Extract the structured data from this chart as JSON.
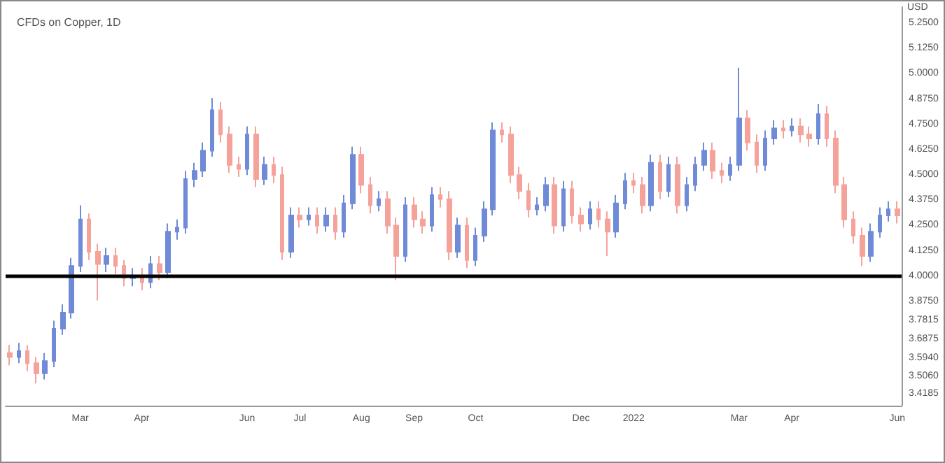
{
  "chart_data": {
    "type": "candlestick",
    "title": "CFDs on Copper, 1D",
    "ylabel": "USD",
    "categories": [
      null,
      null,
      null,
      null,
      null,
      null,
      null,
      null,
      "Mar",
      null,
      null,
      null,
      null,
      null,
      null,
      "Apr",
      null,
      null,
      null,
      null,
      null,
      null,
      null,
      null,
      null,
      null,
      null,
      "Jun",
      null,
      null,
      null,
      null,
      null,
      "Jul",
      null,
      null,
      null,
      null,
      null,
      null,
      "Aug",
      null,
      null,
      null,
      null,
      null,
      "Sep",
      null,
      null,
      null,
      null,
      null,
      null,
      "Oct",
      null,
      null,
      null,
      null,
      null,
      null,
      null,
      null,
      null,
      null,
      null,
      "Dec",
      null,
      null,
      null,
      null,
      null,
      "2022",
      null,
      null,
      null,
      null,
      null,
      null,
      null,
      null,
      null,
      null,
      null,
      "Mar",
      null,
      null,
      null,
      null,
      null,
      "Apr",
      null,
      null,
      null,
      null,
      null,
      null,
      null,
      null,
      null,
      null,
      null,
      "Jun"
    ],
    "ohlc": [
      [
        3.62,
        3.66,
        3.56,
        3.6
      ],
      [
        3.6,
        3.67,
        3.57,
        3.63
      ],
      [
        3.63,
        3.66,
        3.53,
        3.57
      ],
      [
        3.57,
        3.6,
        3.47,
        3.52
      ],
      [
        3.52,
        3.62,
        3.49,
        3.58
      ],
      [
        3.58,
        3.78,
        3.55,
        3.74
      ],
      [
        3.74,
        3.86,
        3.71,
        3.82
      ],
      [
        3.82,
        4.09,
        3.79,
        4.05
      ],
      [
        4.05,
        4.35,
        4.02,
        4.28
      ],
      [
        4.28,
        4.31,
        4.08,
        4.12
      ],
      [
        4.12,
        4.16,
        3.88,
        4.06
      ],
      [
        4.06,
        4.14,
        4.02,
        4.1
      ],
      [
        4.1,
        4.14,
        4.01,
        4.05
      ],
      [
        4.05,
        4.08,
        3.95,
        3.99
      ],
      [
        3.99,
        4.04,
        3.95,
        4.0
      ],
      [
        4.0,
        4.04,
        3.93,
        3.97
      ],
      [
        3.97,
        4.1,
        3.94,
        4.06
      ],
      [
        4.06,
        4.1,
        3.98,
        4.02
      ],
      [
        4.02,
        4.26,
        3.99,
        4.22
      ],
      [
        4.22,
        4.28,
        4.18,
        4.24
      ],
      [
        4.24,
        4.52,
        4.21,
        4.48
      ],
      [
        4.48,
        4.56,
        4.44,
        4.52
      ],
      [
        4.52,
        4.66,
        4.49,
        4.62
      ],
      [
        4.62,
        4.88,
        4.59,
        4.82
      ],
      [
        4.82,
        4.86,
        4.66,
        4.7
      ],
      [
        4.7,
        4.74,
        4.51,
        4.55
      ],
      [
        4.55,
        4.59,
        4.49,
        4.53
      ],
      [
        4.53,
        4.74,
        4.5,
        4.7
      ],
      [
        4.7,
        4.74,
        4.44,
        4.48
      ],
      [
        4.48,
        4.59,
        4.45,
        4.55
      ],
      [
        4.55,
        4.59,
        4.46,
        4.5
      ],
      [
        4.5,
        4.54,
        4.08,
        4.12
      ],
      [
        4.12,
        4.34,
        4.09,
        4.3
      ],
      [
        4.3,
        4.34,
        4.24,
        4.28
      ],
      [
        4.28,
        4.34,
        4.25,
        4.3
      ],
      [
        4.3,
        4.34,
        4.21,
        4.25
      ],
      [
        4.25,
        4.34,
        4.22,
        4.3
      ],
      [
        4.3,
        4.34,
        4.18,
        4.22
      ],
      [
        4.22,
        4.4,
        4.19,
        4.36
      ],
      [
        4.36,
        4.64,
        4.33,
        4.6
      ],
      [
        4.6,
        4.64,
        4.41,
        4.45
      ],
      [
        4.45,
        4.49,
        4.31,
        4.35
      ],
      [
        4.35,
        4.42,
        4.32,
        4.38
      ],
      [
        4.38,
        4.42,
        4.21,
        4.25
      ],
      [
        4.25,
        4.29,
        3.98,
        4.1
      ],
      [
        4.1,
        4.39,
        4.07,
        4.35
      ],
      [
        4.35,
        4.39,
        4.24,
        4.28
      ],
      [
        4.28,
        4.32,
        4.21,
        4.25
      ],
      [
        4.25,
        4.44,
        4.22,
        4.4
      ],
      [
        4.4,
        4.44,
        4.34,
        4.38
      ],
      [
        4.38,
        4.42,
        4.08,
        4.12
      ],
      [
        4.12,
        4.29,
        4.09,
        4.25
      ],
      [
        4.25,
        4.29,
        4.04,
        4.08
      ],
      [
        4.08,
        4.24,
        4.05,
        4.2
      ],
      [
        4.2,
        4.37,
        4.17,
        4.33
      ],
      [
        4.33,
        4.76,
        4.3,
        4.72
      ],
      [
        4.72,
        4.76,
        4.66,
        4.7
      ],
      [
        4.7,
        4.74,
        4.46,
        4.5
      ],
      [
        4.5,
        4.54,
        4.38,
        4.42
      ],
      [
        4.42,
        4.46,
        4.29,
        4.33
      ],
      [
        4.33,
        4.39,
        4.3,
        4.35
      ],
      [
        4.35,
        4.49,
        4.32,
        4.45
      ],
      [
        4.45,
        4.49,
        4.21,
        4.25
      ],
      [
        4.25,
        4.47,
        4.22,
        4.43
      ],
      [
        4.43,
        4.47,
        4.26,
        4.3
      ],
      [
        4.3,
        4.34,
        4.22,
        4.26
      ],
      [
        4.26,
        4.37,
        4.23,
        4.33
      ],
      [
        4.33,
        4.37,
        4.24,
        4.28
      ],
      [
        4.28,
        4.32,
        4.1,
        4.22
      ],
      [
        4.22,
        4.4,
        4.19,
        4.36
      ],
      [
        4.36,
        4.51,
        4.33,
        4.47
      ],
      [
        4.47,
        4.51,
        4.41,
        4.45
      ],
      [
        4.45,
        4.49,
        4.31,
        4.35
      ],
      [
        4.35,
        4.6,
        4.32,
        4.56
      ],
      [
        4.56,
        4.6,
        4.38,
        4.42
      ],
      [
        4.42,
        4.59,
        4.39,
        4.55
      ],
      [
        4.55,
        4.59,
        4.31,
        4.35
      ],
      [
        4.35,
        4.49,
        4.32,
        4.45
      ],
      [
        4.45,
        4.59,
        4.42,
        4.55
      ],
      [
        4.55,
        4.66,
        4.52,
        4.62
      ],
      [
        4.62,
        4.66,
        4.48,
        4.52
      ],
      [
        4.52,
        4.56,
        4.46,
        4.5
      ],
      [
        4.5,
        4.59,
        4.47,
        4.55
      ],
      [
        4.55,
        5.03,
        4.52,
        4.78
      ],
      [
        4.78,
        4.82,
        4.62,
        4.66
      ],
      [
        4.66,
        4.7,
        4.51,
        4.55
      ],
      [
        4.55,
        4.72,
        4.52,
        4.68
      ],
      [
        4.68,
        4.77,
        4.65,
        4.73
      ],
      [
        4.73,
        4.77,
        4.68,
        4.72
      ],
      [
        4.72,
        4.78,
        4.69,
        4.74
      ],
      [
        4.74,
        4.78,
        4.66,
        4.7
      ],
      [
        4.7,
        4.74,
        4.64,
        4.68
      ],
      [
        4.68,
        4.85,
        4.65,
        4.8
      ],
      [
        4.8,
        4.84,
        4.64,
        4.68
      ],
      [
        4.68,
        4.72,
        4.41,
        4.45
      ],
      [
        4.45,
        4.49,
        4.24,
        4.28
      ],
      [
        4.28,
        4.32,
        4.16,
        4.2
      ],
      [
        4.2,
        4.24,
        4.05,
        4.1
      ],
      [
        4.1,
        4.26,
        4.07,
        4.22
      ],
      [
        4.22,
        4.34,
        4.19,
        4.3
      ],
      [
        4.3,
        4.37,
        4.27,
        4.33
      ],
      [
        4.33,
        4.37,
        4.26,
        4.3
      ]
    ],
    "colors": [
      "#f5a29b",
      "#6f8bd8",
      "#f5a29b",
      "#f5a29b",
      "#6f8bd8",
      "#6f8bd8",
      "#6f8bd8",
      "#6f8bd8",
      "#6f8bd8",
      "#f5a29b",
      "#f5a29b",
      "#6f8bd8",
      "#f5a29b",
      "#f5a29b",
      "#6f8bd8",
      "#f5a29b",
      "#6f8bd8",
      "#f5a29b",
      "#6f8bd8",
      "#6f8bd8",
      "#6f8bd8",
      "#6f8bd8",
      "#6f8bd8",
      "#6f8bd8",
      "#f5a29b",
      "#f5a29b",
      "#f5a29b",
      "#6f8bd8",
      "#f5a29b",
      "#6f8bd8",
      "#f5a29b",
      "#f5a29b",
      "#6f8bd8",
      "#f5a29b",
      "#6f8bd8",
      "#f5a29b",
      "#6f8bd8",
      "#f5a29b",
      "#6f8bd8",
      "#6f8bd8",
      "#f5a29b",
      "#f5a29b",
      "#6f8bd8",
      "#f5a29b",
      "#f5a29b",
      "#6f8bd8",
      "#f5a29b",
      "#f5a29b",
      "#6f8bd8",
      "#f5a29b",
      "#f5a29b",
      "#6f8bd8",
      "#f5a29b",
      "#6f8bd8",
      "#6f8bd8",
      "#6f8bd8",
      "#f5a29b",
      "#f5a29b",
      "#f5a29b",
      "#f5a29b",
      "#6f8bd8",
      "#6f8bd8",
      "#f5a29b",
      "#6f8bd8",
      "#f5a29b",
      "#f5a29b",
      "#6f8bd8",
      "#f5a29b",
      "#f5a29b",
      "#6f8bd8",
      "#6f8bd8",
      "#f5a29b",
      "#f5a29b",
      "#6f8bd8",
      "#f5a29b",
      "#6f8bd8",
      "#f5a29b",
      "#6f8bd8",
      "#6f8bd8",
      "#6f8bd8",
      "#f5a29b",
      "#f5a29b",
      "#6f8bd8",
      "#6f8bd8",
      "#f5a29b",
      "#f5a29b",
      "#6f8bd8",
      "#6f8bd8",
      "#f5a29b",
      "#6f8bd8",
      "#f5a29b",
      "#f5a29b",
      "#6f8bd8",
      "#f5a29b",
      "#f5a29b",
      "#f5a29b",
      "#f5a29b",
      "#f5a29b",
      "#6f8bd8",
      "#6f8bd8",
      "#6f8bd8",
      "#f5a29b"
    ],
    "ylim": [
      3.36,
      5.33
    ],
    "yticks": [
      {
        "value": 3.4185,
        "label": "3.4185"
      },
      {
        "value": 3.506,
        "label": "3.5060"
      },
      {
        "value": 3.594,
        "label": "3.5940"
      },
      {
        "value": 3.6875,
        "label": "3.6875"
      },
      {
        "value": 3.7815,
        "label": "3.7815"
      },
      {
        "value": 3.875,
        "label": "3.8750"
      },
      {
        "value": 4,
        "label": "4.0000"
      },
      {
        "value": 4.125,
        "label": "4.1250"
      },
      {
        "value": 4.25,
        "label": "4.2500"
      },
      {
        "value": 4.375,
        "label": "4.3750"
      },
      {
        "value": 4.5,
        "label": "4.5000"
      },
      {
        "value": 4.625,
        "label": "4.6250"
      },
      {
        "value": 4.75,
        "label": "4.7500"
      },
      {
        "value": 4.875,
        "label": "4.8750"
      },
      {
        "value": 5,
        "label": "5.0000"
      },
      {
        "value": 5.125,
        "label": "5.1250"
      },
      {
        "value": 5.25,
        "label": "5.2500"
      }
    ],
    "ref_lines": [
      {
        "axis": "y",
        "value": 4,
        "color": "#000000"
      }
    ]
  }
}
